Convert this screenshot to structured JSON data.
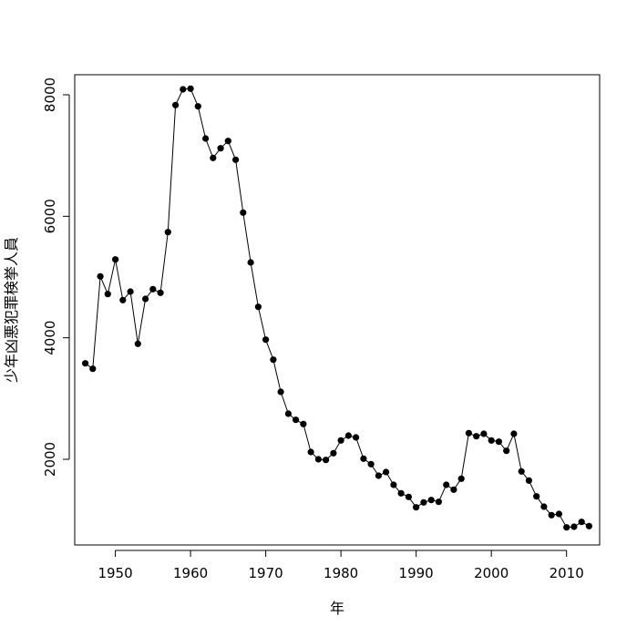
{
  "chart_data": {
    "type": "line",
    "title": "",
    "xlabel": "年",
    "ylabel": "少年凶悪犯罪検挙人員",
    "xlim": [
      1944.6,
      2014.4
    ],
    "ylim": [
      590,
      8330
    ],
    "x_ticks": [
      1950,
      1960,
      1970,
      1980,
      1990,
      2000,
      2010
    ],
    "y_ticks": [
      2000,
      4000,
      6000,
      8000
    ],
    "x_tick_labels": [
      "1950",
      "1960",
      "1970",
      "1980",
      "1990",
      "2000",
      "2010"
    ],
    "y_tick_labels": [
      "2000",
      "4000",
      "6000",
      "8000"
    ],
    "grid": false,
    "legend": "none",
    "series": [
      {
        "color": "#000000",
        "marker": "filled-circle",
        "x": [
          1946,
          1947,
          1948,
          1949,
          1950,
          1951,
          1952,
          1953,
          1954,
          1955,
          1956,
          1957,
          1958,
          1959,
          1960,
          1961,
          1962,
          1963,
          1964,
          1965,
          1966,
          1967,
          1968,
          1969,
          1970,
          1971,
          1972,
          1973,
          1974,
          1975,
          1976,
          1977,
          1978,
          1979,
          1980,
          1981,
          1982,
          1983,
          1984,
          1985,
          1986,
          1987,
          1988,
          1989,
          1990,
          1991,
          1992,
          1993,
          1994,
          1995,
          1996,
          1997,
          1998,
          1999,
          2000,
          2001,
          2002,
          2003,
          2004,
          2005,
          2006,
          2007,
          2008,
          2009,
          2010,
          2011,
          2012,
          2013
        ],
        "values": [
          3580,
          3490,
          5010,
          4720,
          5290,
          4620,
          4760,
          3900,
          4640,
          4800,
          4740,
          5740,
          7830,
          8090,
          8100,
          7810,
          7280,
          6960,
          7120,
          7240,
          6930,
          6060,
          5240,
          4510,
          3970,
          3640,
          3110,
          2750,
          2650,
          2580,
          2120,
          2000,
          1990,
          2100,
          2310,
          2390,
          2360,
          2010,
          1920,
          1730,
          1790,
          1580,
          1440,
          1380,
          1210,
          1290,
          1330,
          1300,
          1580,
          1500,
          1680,
          2430,
          2380,
          2420,
          2310,
          2290,
          2140,
          2420,
          1800,
          1650,
          1390,
          1220,
          1080,
          1100,
          880,
          890,
          970,
          900
        ]
      }
    ]
  }
}
